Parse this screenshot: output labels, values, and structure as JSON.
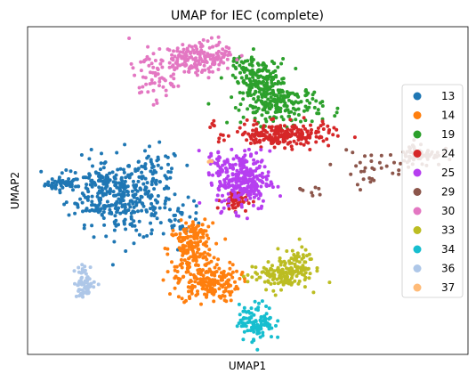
{
  "chart_data": {
    "type": "scatter",
    "title": "UMAP for IEC (complete)",
    "xlabel": "UMAP1",
    "ylabel": "UMAP2",
    "xlim": [
      0,
      100
    ],
    "ylim": [
      0,
      100
    ],
    "grid": false,
    "legend_position": "right",
    "series": [
      {
        "name": "13",
        "color": "#1f77b4",
        "clusters": [
          {
            "cx": 8,
            "cy": 52,
            "sx": 2.0,
            "sy": 1.0,
            "n": 45
          },
          {
            "cx": 17,
            "cy": 50,
            "sx": 4.0,
            "sy": 5.0,
            "n": 200
          },
          {
            "cx": 24,
            "cy": 46,
            "sx": 4.5,
            "sy": 5.5,
            "n": 160
          },
          {
            "cx": 29,
            "cy": 55,
            "sx": 3.0,
            "sy": 4.0,
            "n": 60
          },
          {
            "cx": 35,
            "cy": 42,
            "sx": 2.5,
            "sy": 2.5,
            "n": 35
          }
        ]
      },
      {
        "name": "14",
        "color": "#ff7f0e",
        "clusters": [
          {
            "cx": 37,
            "cy": 32,
            "sx": 2.5,
            "sy": 4.0,
            "n": 160
          },
          {
            "cx": 41,
            "cy": 22,
            "sx": 3.5,
            "sy": 3.0,
            "n": 180
          },
          {
            "cx": 39,
            "cy": 38,
            "sx": 1.5,
            "sy": 1.5,
            "n": 30
          }
        ]
      },
      {
        "name": "19",
        "color": "#2ca02c",
        "clusters": [
          {
            "cx": 53,
            "cy": 83,
            "sx": 3.0,
            "sy": 3.5,
            "n": 160
          },
          {
            "cx": 58,
            "cy": 76,
            "sx": 4.5,
            "sy": 3.0,
            "n": 180
          },
          {
            "cx": 49,
            "cy": 88,
            "sx": 2.0,
            "sy": 2.0,
            "n": 30
          }
        ]
      },
      {
        "name": "24",
        "color": "#d62728",
        "clusters": [
          {
            "cx": 58,
            "cy": 67,
            "sx": 5.5,
            "sy": 1.8,
            "n": 220
          },
          {
            "cx": 47,
            "cy": 47,
            "sx": 1.5,
            "sy": 1.5,
            "n": 55
          },
          {
            "cx": 42,
            "cy": 70,
            "sx": 0.4,
            "sy": 0.6,
            "n": 4
          }
        ]
      },
      {
        "name": "25",
        "color": "#b63ef0",
        "clusters": [
          {
            "cx": 49,
            "cy": 53,
            "sx": 3.0,
            "sy": 4.5,
            "n": 260
          },
          {
            "cx": 44,
            "cy": 58,
            "sx": 1.5,
            "sy": 2.0,
            "n": 30
          }
        ]
      },
      {
        "name": "29",
        "color": "#8c564b",
        "clusters": [
          {
            "cx": 89,
            "cy": 61,
            "sx": 2.5,
            "sy": 1.8,
            "n": 70
          },
          {
            "cx": 78,
            "cy": 57,
            "sx": 4.0,
            "sy": 2.5,
            "n": 30
          },
          {
            "cx": 64,
            "cy": 50,
            "sx": 1.5,
            "sy": 1.2,
            "n": 8
          }
        ]
      },
      {
        "name": "30",
        "color": "#e377c2",
        "clusters": [
          {
            "cx": 37,
            "cy": 90,
            "sx": 4.0,
            "sy": 2.5,
            "n": 150
          },
          {
            "cx": 28,
            "cy": 84,
            "sx": 2.5,
            "sy": 3.5,
            "n": 50
          },
          {
            "cx": 43,
            "cy": 92,
            "sx": 2.0,
            "sy": 2.0,
            "n": 40
          }
        ]
      },
      {
        "name": "33",
        "color": "#bcbd22",
        "clusters": [
          {
            "cx": 57,
            "cy": 24,
            "sx": 3.5,
            "sy": 2.0,
            "n": 120
          },
          {
            "cx": 61,
            "cy": 28,
            "sx": 2.0,
            "sy": 2.0,
            "n": 60
          }
        ]
      },
      {
        "name": "34",
        "color": "#17becf",
        "clusters": [
          {
            "cx": 52,
            "cy": 10,
            "sx": 2.0,
            "sy": 2.8,
            "n": 110
          }
        ]
      },
      {
        "name": "36",
        "color": "#aec7e8",
        "clusters": [
          {
            "cx": 13,
            "cy": 22,
            "sx": 1.2,
            "sy": 2.5,
            "n": 60
          }
        ]
      },
      {
        "name": "37",
        "color": "#ffbb78",
        "clusters": [
          {
            "cx": 42,
            "cy": 59,
            "sx": 0.5,
            "sy": 0.5,
            "n": 3
          }
        ]
      }
    ]
  }
}
